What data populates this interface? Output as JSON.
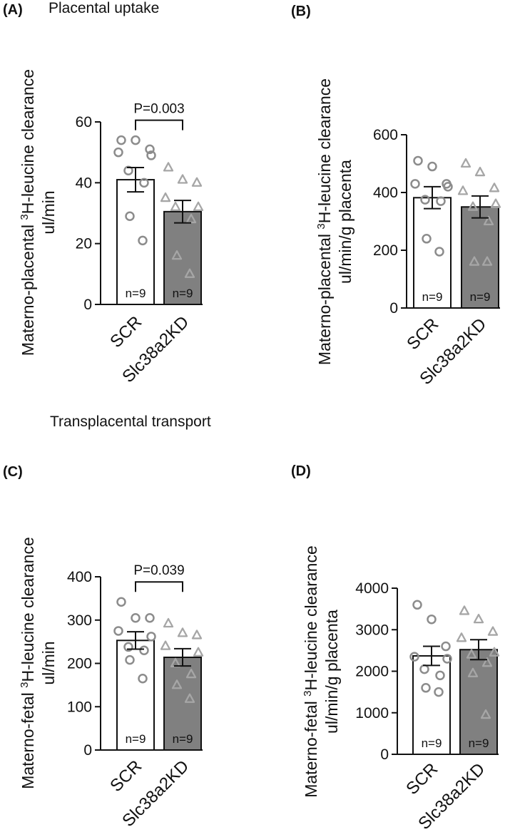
{
  "section_titles": {
    "top": "Placental uptake",
    "bottom": "Transplacental transport"
  },
  "colors": {
    "scr_bar": "#ffffff",
    "kd_bar": "#808080",
    "axis": "#111111",
    "scr_points": "#8c8c8c",
    "kd_points": "#a6a6a6"
  },
  "chart_data": [
    {
      "id": "A",
      "panel_label": "(A)",
      "type": "bar",
      "categories": [
        "SCR",
        "Slc38a2KD"
      ],
      "ylabel_line1_pre": "Materno-placental ",
      "ylabel_line1_sup": "3",
      "ylabel_line1_post": "H-leucine clearance",
      "ylabel_line2": "ul/min",
      "ylim": [
        0,
        60
      ],
      "yticks": [
        0,
        20,
        40,
        60
      ],
      "means": [
        41,
        30.5
      ],
      "sem": [
        4,
        3.7
      ],
      "points": [
        [
          54,
          54,
          51,
          50,
          49,
          44,
          40,
          29,
          21
        ],
        [
          45,
          41,
          40,
          35,
          32,
          32,
          28,
          16,
          10
        ]
      ],
      "n_labels": [
        "n=9",
        "n=9"
      ],
      "pvalue": "P=0.003"
    },
    {
      "id": "B",
      "panel_label": "(B)",
      "type": "bar",
      "categories": [
        "SCR",
        "Slc38a2KD"
      ],
      "ylabel_line1_pre": "Materno-placental ",
      "ylabel_line1_sup": "3",
      "ylabel_line1_post": "H-leucine clearance",
      "ylabel_line2": "ul/min/g placenta",
      "ylim": [
        0,
        600
      ],
      "yticks": [
        0,
        200,
        400,
        600
      ],
      "means": [
        382,
        350
      ],
      "sem": [
        38,
        38
      ],
      "points": [
        [
          510,
          490,
          430,
          430,
          420,
          375,
          370,
          240,
          195
        ],
        [
          500,
          470,
          415,
          405,
          360,
          350,
          300,
          160,
          160
        ]
      ],
      "n_labels": [
        "n=9",
        "n=9"
      ],
      "pvalue": ""
    },
    {
      "id": "C",
      "panel_label": "(C)",
      "type": "bar",
      "categories": [
        "SCR",
        "Slc38a2KD"
      ],
      "ylabel_line1_pre": "Materno-fetal ",
      "ylabel_line1_sup": "3",
      "ylabel_line1_post": "H-leucine clearance",
      "ylabel_line2": "ul/min",
      "ylim": [
        0,
        400
      ],
      "yticks": [
        0,
        100,
        200,
        300,
        400
      ],
      "means": [
        253,
        214
      ],
      "sem": [
        20,
        20
      ],
      "points": [
        [
          342,
          305,
          305,
          275,
          262,
          238,
          230,
          208,
          165
        ],
        [
          292,
          270,
          265,
          240,
          225,
          200,
          175,
          150,
          118
        ]
      ],
      "n_labels": [
        "n=9",
        "n=9"
      ],
      "pvalue": "P=0.039"
    },
    {
      "id": "D",
      "panel_label": "(D)",
      "type": "bar",
      "categories": [
        "SCR",
        "Slc38a2KD"
      ],
      "ylabel_line1_pre": "Materno-fetal ",
      "ylabel_line1_sup": "3",
      "ylabel_line1_post": "H-leucine clearance",
      "ylabel_line2": "ul/min/g placenta",
      "ylim": [
        0,
        4000
      ],
      "yticks": [
        0,
        1000,
        2000,
        3000,
        4000
      ],
      "means": [
        2370,
        2520
      ],
      "sem": [
        230,
        240
      ],
      "points": [
        [
          3600,
          3250,
          2600,
          2350,
          2300,
          2050,
          1900,
          1600,
          1500
        ],
        [
          3450,
          3250,
          2950,
          2800,
          2450,
          2400,
          2200,
          1950,
          950
        ]
      ],
      "n_labels": [
        "n=9",
        "n=9"
      ],
      "pvalue": ""
    }
  ]
}
